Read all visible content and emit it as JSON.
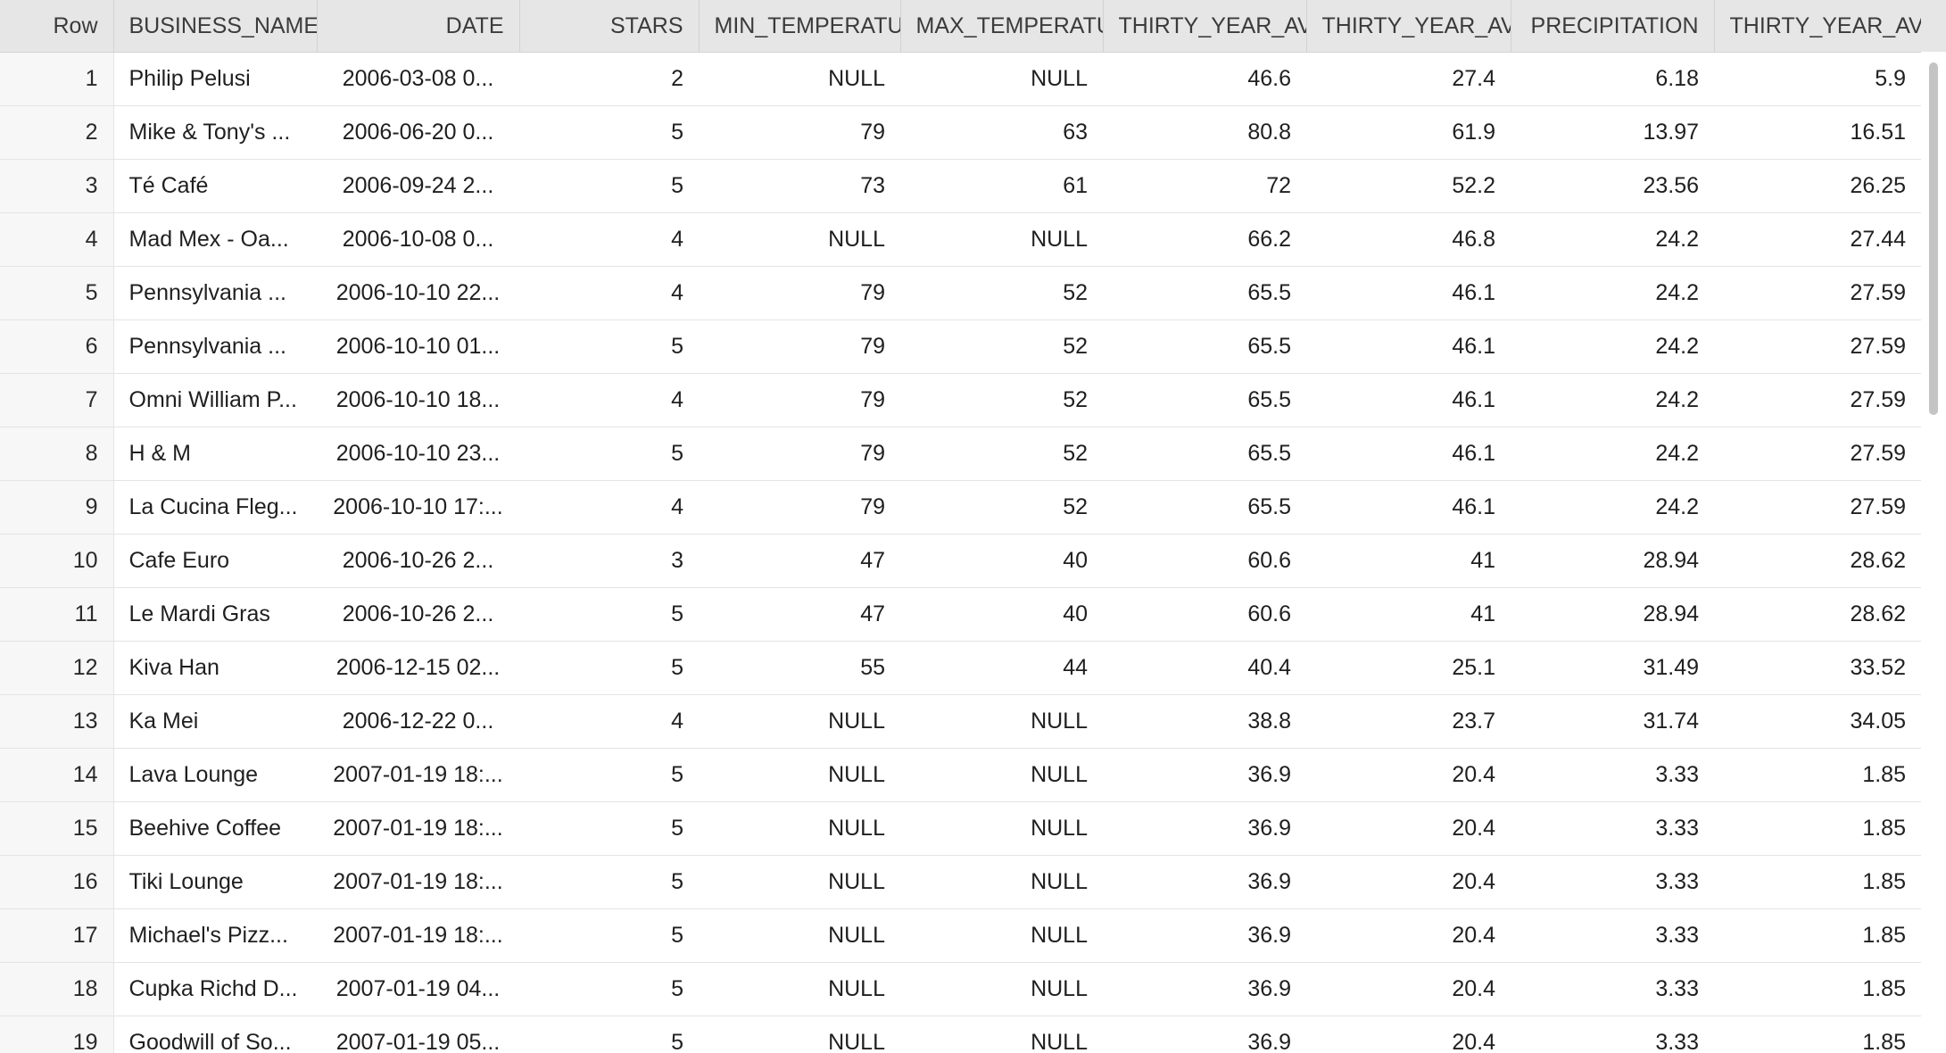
{
  "grid": {
    "columns": [
      "Row",
      "BUSINESS_NAME",
      "DATE",
      "STARS",
      "MIN_TEMPERATUF",
      "MAX_TEMPERATU",
      "THIRTY_YEAR_AVE",
      "THIRTY_YEAR_AVE",
      "PRECIPITATION",
      "THIRTY_YEAR_AVE"
    ],
    "rows": [
      [
        "1",
        "Philip Pelusi",
        "2006-03-08 0...",
        "2",
        "NULL",
        "NULL",
        "46.6",
        "27.4",
        "6.18",
        "5.9"
      ],
      [
        "2",
        "Mike & Tony's ...",
        "2006-06-20 0...",
        "5",
        "79",
        "63",
        "80.8",
        "61.9",
        "13.97",
        "16.51"
      ],
      [
        "3",
        "Té Café",
        "2006-09-24 2...",
        "5",
        "73",
        "61",
        "72",
        "52.2",
        "23.56",
        "26.25"
      ],
      [
        "4",
        "Mad Mex - Oa...",
        "2006-10-08 0...",
        "4",
        "NULL",
        "NULL",
        "66.2",
        "46.8",
        "24.2",
        "27.44"
      ],
      [
        "5",
        "Pennsylvania ...",
        "2006-10-10 22...",
        "4",
        "79",
        "52",
        "65.5",
        "46.1",
        "24.2",
        "27.59"
      ],
      [
        "6",
        "Pennsylvania ...",
        "2006-10-10 01...",
        "5",
        "79",
        "52",
        "65.5",
        "46.1",
        "24.2",
        "27.59"
      ],
      [
        "7",
        "Omni William P...",
        "2006-10-10 18...",
        "4",
        "79",
        "52",
        "65.5",
        "46.1",
        "24.2",
        "27.59"
      ],
      [
        "8",
        "H & M",
        "2006-10-10 23...",
        "5",
        "79",
        "52",
        "65.5",
        "46.1",
        "24.2",
        "27.59"
      ],
      [
        "9",
        "La Cucina Fleg...",
        "2006-10-10 17:...",
        "4",
        "79",
        "52",
        "65.5",
        "46.1",
        "24.2",
        "27.59"
      ],
      [
        "10",
        "Cafe Euro",
        "2006-10-26 2...",
        "3",
        "47",
        "40",
        "60.6",
        "41",
        "28.94",
        "28.62"
      ],
      [
        "11",
        "Le Mardi Gras",
        "2006-10-26 2...",
        "5",
        "47",
        "40",
        "60.6",
        "41",
        "28.94",
        "28.62"
      ],
      [
        "12",
        "Kiva Han",
        "2006-12-15 02...",
        "5",
        "55",
        "44",
        "40.4",
        "25.1",
        "31.49",
        "33.52"
      ],
      [
        "13",
        "Ka Mei",
        "2006-12-22 0...",
        "4",
        "NULL",
        "NULL",
        "38.8",
        "23.7",
        "31.74",
        "34.05"
      ],
      [
        "14",
        "Lava Lounge",
        "2007-01-19 18:...",
        "5",
        "NULL",
        "NULL",
        "36.9",
        "20.4",
        "3.33",
        "1.85"
      ],
      [
        "15",
        "Beehive Coffee",
        "2007-01-19 18:...",
        "5",
        "NULL",
        "NULL",
        "36.9",
        "20.4",
        "3.33",
        "1.85"
      ],
      [
        "16",
        "Tiki Lounge",
        "2007-01-19 18:...",
        "5",
        "NULL",
        "NULL",
        "36.9",
        "20.4",
        "3.33",
        "1.85"
      ],
      [
        "17",
        "Michael's Pizz...",
        "2007-01-19 18:...",
        "5",
        "NULL",
        "NULL",
        "36.9",
        "20.4",
        "3.33",
        "1.85"
      ],
      [
        "18",
        "Cupka Richd D...",
        "2007-01-19 04...",
        "5",
        "NULL",
        "NULL",
        "36.9",
        "20.4",
        "3.33",
        "1.85"
      ],
      [
        "19",
        "Goodwill of So...",
        "2007-01-19 05...",
        "5",
        "NULL",
        "NULL",
        "36.9",
        "20.4",
        "3.33",
        "1.85"
      ]
    ]
  }
}
